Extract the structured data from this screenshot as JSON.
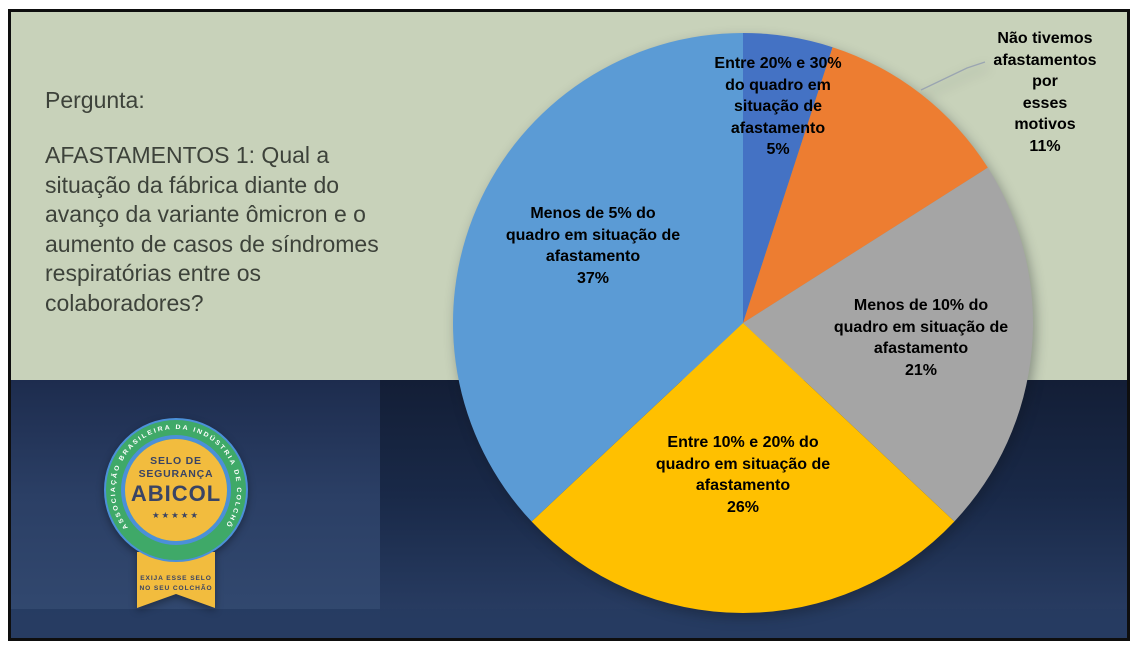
{
  "question_panel": {
    "label": "Pergunta:",
    "question": "AFASTAMENTOS 1: Qual a situação da fábrica diante do avanço da variante ômicron e o aumento de casos de síndromes respiratórias entre os colaboradores?",
    "question_display": "AFASTAMENTOS 1: Qual a\nsituação da fábrica diante do\navanço da variante ômicron e o\naumento de casos de síndromes\nrespiratórias entre os\ncolaboradores?"
  },
  "badge": {
    "ring_text": "ASSOCIAÇÃO BRASILEIRA DA INDÚSTRIA DE COLCHÕES ·",
    "seal_line1": "SELO DE",
    "seal_line2": "SEGURANÇA",
    "seal_name": "ABICOL",
    "stars": "★★★★★",
    "ribbon_line1": "EXIJA ESSE SELO",
    "ribbon_line2": "NO SEU COLCHÃO",
    "colors": {
      "green": "#3fa968",
      "blue": "#4b90d8",
      "yellow": "#f2bc3e",
      "navy_text": "#3a4464"
    }
  },
  "chart_data": {
    "type": "pie",
    "title": "",
    "units": "%",
    "total": 100,
    "start_at": "top",
    "direction": "clockwise",
    "legend": "none",
    "label_style": "bold black, inside slices; smallest-adjacent slice uses leader-line callout",
    "slices": [
      {
        "label": "Entre 20% e 30% do quadro em situação de afastamento",
        "value": 5,
        "color": "#4472C4",
        "display": "Entre 20% e 30%\ndo quadro em\nsituação de\nafastamento\n5%"
      },
      {
        "label": "Não tivemos afastamentos por esses motivos",
        "value": 11,
        "color": "#ED7D31",
        "display": "Não tivemos\nafastamentos por\nesses motivos\n11%"
      },
      {
        "label": "Menos de 10% do quadro em situação de afastamento",
        "value": 21,
        "color": "#A5A5A5",
        "display": "Menos de 10% do\nquadro em situação de\nafastamento\n21%"
      },
      {
        "label": "Entre 10% e 20% do quadro em situação de afastamento",
        "value": 26,
        "color": "#FFC000",
        "display": "Entre 10% e 20% do\nquadro em situação de\nafastamento\n26%"
      },
      {
        "label": "Menos de 5% do quadro em situação de afastamento",
        "value": 37,
        "color": "#5B9BD5",
        "display": "Menos de 5% do\nquadro em situação de\nafastamento\n37%"
      }
    ]
  },
  "slide_colors": {
    "panel_green": "#c8d2ba",
    "navy_left_mid": "#2b3f65",
    "navy_right_top": "#131e36",
    "bottom_strip": "#263b60",
    "frame_border": "#0e0e0e"
  }
}
